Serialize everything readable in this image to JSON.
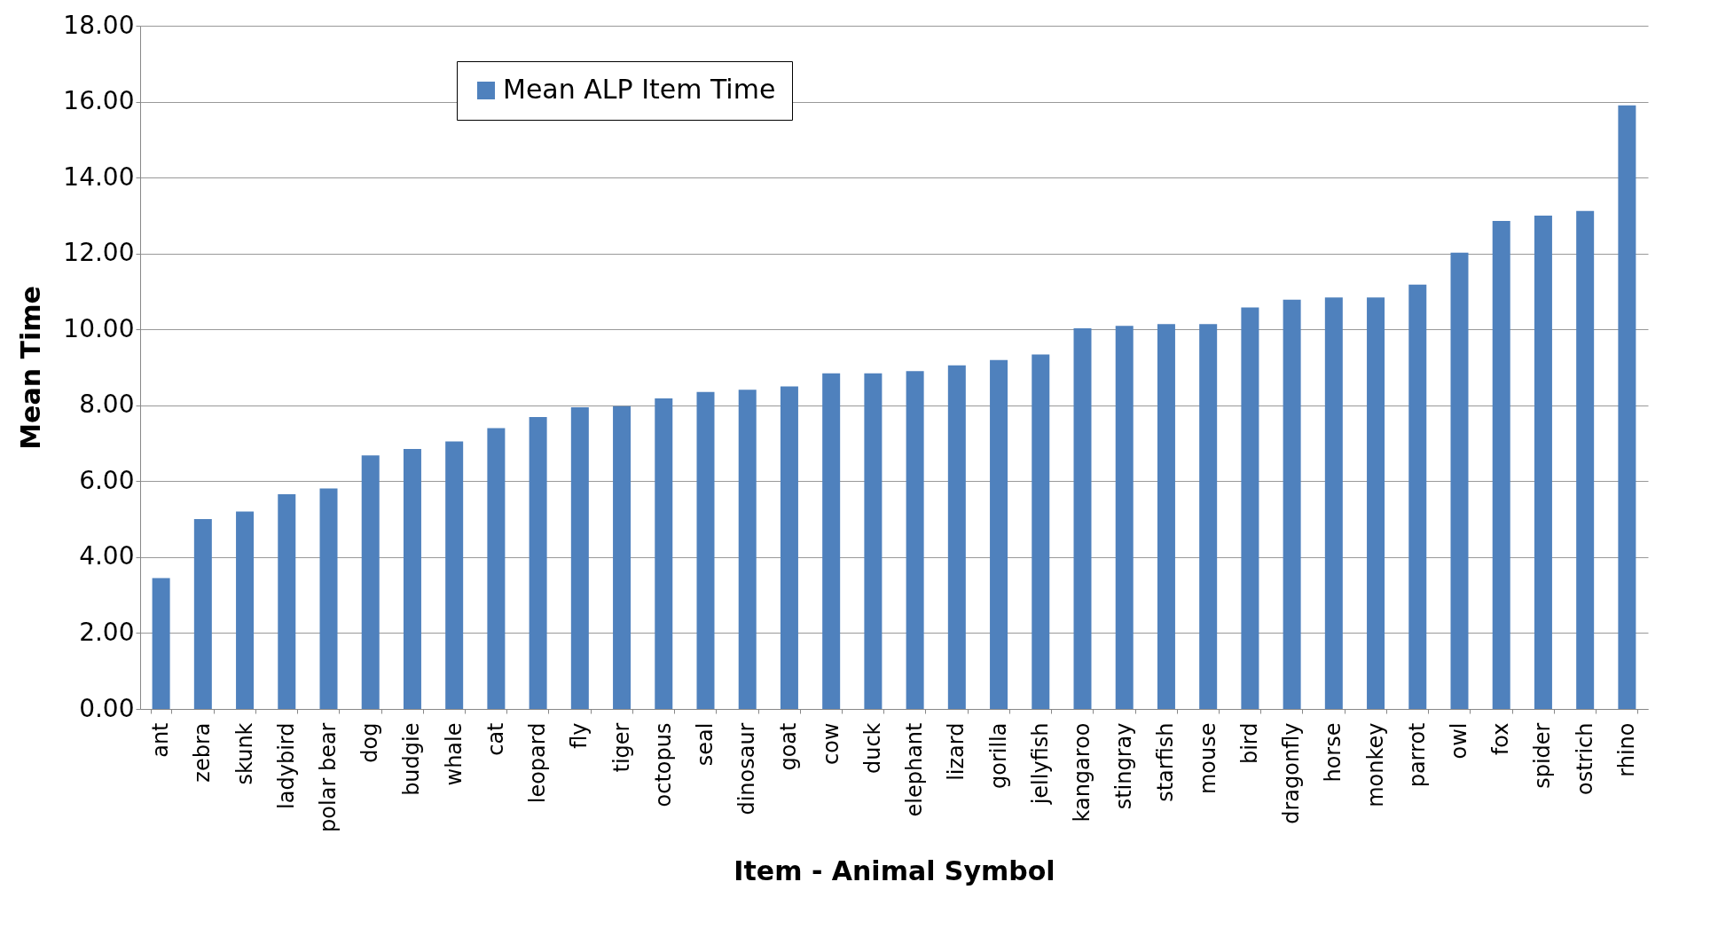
{
  "chart_data": {
    "type": "bar",
    "xlabel": "Item - Animal Symbol",
    "ylabel": "Mean Time",
    "categories": [
      "ant",
      "zebra",
      "skunk",
      "ladybird",
      "polar bear",
      "dog",
      "budgie",
      "whale",
      "cat",
      "leopard",
      "fly",
      "tiger",
      "octopus",
      "seal",
      "dinosaur",
      "goat",
      "cow",
      "duck",
      "elephant",
      "lizard",
      "gorilla",
      "jellyfish",
      "kangaroo",
      "stingray",
      "starfish",
      "mouse",
      "bird",
      "dragonfly",
      "horse",
      "monkey",
      "parrot",
      "owl",
      "fox",
      "spider",
      "ostrich",
      "rhino"
    ],
    "series": [
      {
        "name": "Mean ALP Item Time",
        "color": "#4f81bd",
        "values": [
          3.45,
          5.0,
          5.2,
          5.66,
          5.81,
          6.68,
          6.85,
          7.05,
          7.4,
          7.69,
          7.95,
          7.98,
          8.18,
          8.35,
          8.41,
          8.5,
          8.84,
          8.84,
          8.9,
          9.05,
          9.19,
          9.34,
          10.03,
          10.09,
          10.14,
          10.14,
          10.58,
          10.78,
          10.84,
          10.84,
          11.18,
          12.02,
          12.86,
          13.0,
          13.12,
          15.9
        ]
      }
    ],
    "ylim": [
      0,
      18
    ],
    "yticks": [
      {
        "value": 0,
        "label": "0.00"
      },
      {
        "value": 2,
        "label": "2.00"
      },
      {
        "value": 4,
        "label": "4.00"
      },
      {
        "value": 6,
        "label": "6.00"
      },
      {
        "value": 8,
        "label": "8.00"
      },
      {
        "value": 10,
        "label": "10.00"
      },
      {
        "value": 12,
        "label": "12.00"
      },
      {
        "value": 14,
        "label": "14.00"
      },
      {
        "value": 16,
        "label": "16.00"
      },
      {
        "value": 18,
        "label": "18.00"
      }
    ],
    "grid": "y",
    "legend": "top"
  }
}
